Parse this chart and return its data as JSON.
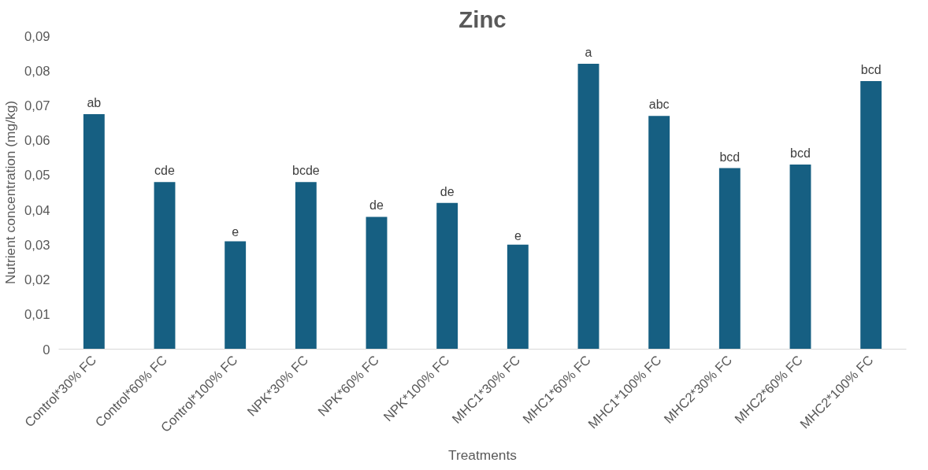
{
  "chart_data": {
    "type": "bar",
    "title": "Zinc",
    "xlabel": "Treatments",
    "ylabel": "Nutrient concentration (mg/kg)",
    "categories": [
      "Control*30% FC",
      "Control*60% FC",
      "Control*100% FC",
      "NPK*30% FC",
      "NPK*60% FC",
      "NPK*100% FC",
      "MHC1*30% FC",
      "MHC1*60% FC",
      "MHC1*100% FC",
      "MHC2*30% FC",
      "MHC2*60% FC",
      "MHC2*100% FC"
    ],
    "values": [
      0.0675,
      0.048,
      0.031,
      0.048,
      0.038,
      0.042,
      0.03,
      0.082,
      0.067,
      0.052,
      0.053,
      0.077
    ],
    "color": "#165f82",
    "ylim": [
      0,
      0.09
    ],
    "yticks": [
      {
        "value": 0,
        "label": "0"
      },
      {
        "value": 0.01,
        "label": "0,01"
      },
      {
        "value": 0.02,
        "label": "0,02"
      },
      {
        "value": 0.03,
        "label": "0,03"
      },
      {
        "value": 0.04,
        "label": "0,04"
      },
      {
        "value": 0.05,
        "label": "0,05"
      },
      {
        "value": 0.06,
        "label": "0,06"
      },
      {
        "value": 0.07,
        "label": "0,07"
      },
      {
        "value": 0.08,
        "label": "0,08"
      },
      {
        "value": 0.09,
        "label": "0,09"
      }
    ],
    "grid": false,
    "annotations": [
      {
        "text": "ab",
        "x": "Control*30% FC",
        "y": 0.0675
      },
      {
        "text": "cde",
        "x": "Control*60% FC",
        "y": 0.048
      },
      {
        "text": "e",
        "x": "Control*100% FC",
        "y": 0.031
      },
      {
        "text": "bcde",
        "x": "NPK*30% FC",
        "y": 0.048
      },
      {
        "text": "de",
        "x": "NPK*60% FC",
        "y": 0.038
      },
      {
        "text": "de",
        "x": "NPK*100% FC",
        "y": 0.042
      },
      {
        "text": "e",
        "x": "MHC1*30% FC",
        "y": 0.03
      },
      {
        "text": "a",
        "x": "MHC1*60% FC",
        "y": 0.082
      },
      {
        "text": "abc",
        "x": "MHC1*100% FC",
        "y": 0.067
      },
      {
        "text": "bcd",
        "x": "MHC2*30% FC",
        "y": 0.052
      },
      {
        "text": "bcd",
        "x": "MHC2*60% FC",
        "y": 0.053
      },
      {
        "text": "bcd",
        "x": "MHC2*100% FC",
        "y": 0.077
      }
    ]
  }
}
